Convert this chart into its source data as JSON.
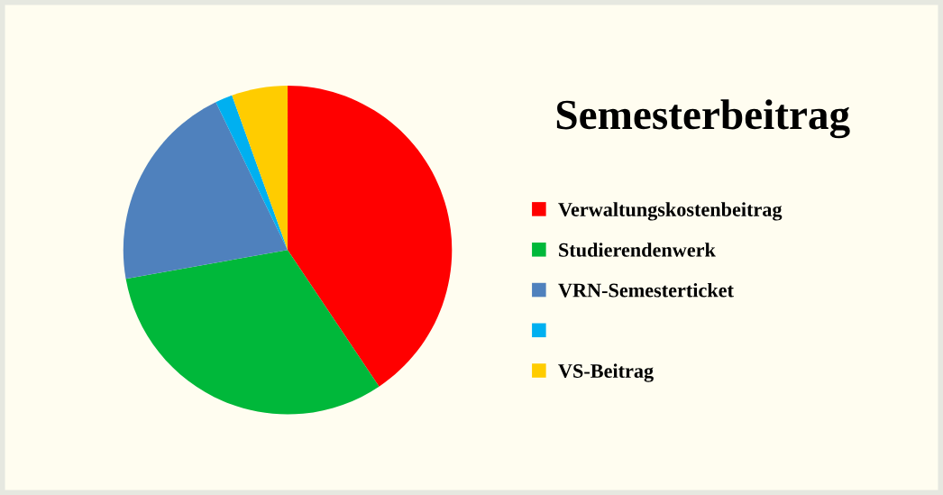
{
  "chart_data": {
    "type": "pie",
    "title": "Semesterbeitrag",
    "categories": [
      "Verwaltungskostenbeitrag",
      "Studierendenwerk",
      "VRN-Semesterticket",
      null,
      "VS-Beitrag"
    ],
    "values": [
      40.6,
      31.6,
      20.6,
      1.7,
      5.5
    ],
    "colors": [
      "#ff0000",
      "#00b83a",
      "#4f81bd",
      "#00b0f0",
      "#ffcc00"
    ],
    "legend": "right"
  }
}
